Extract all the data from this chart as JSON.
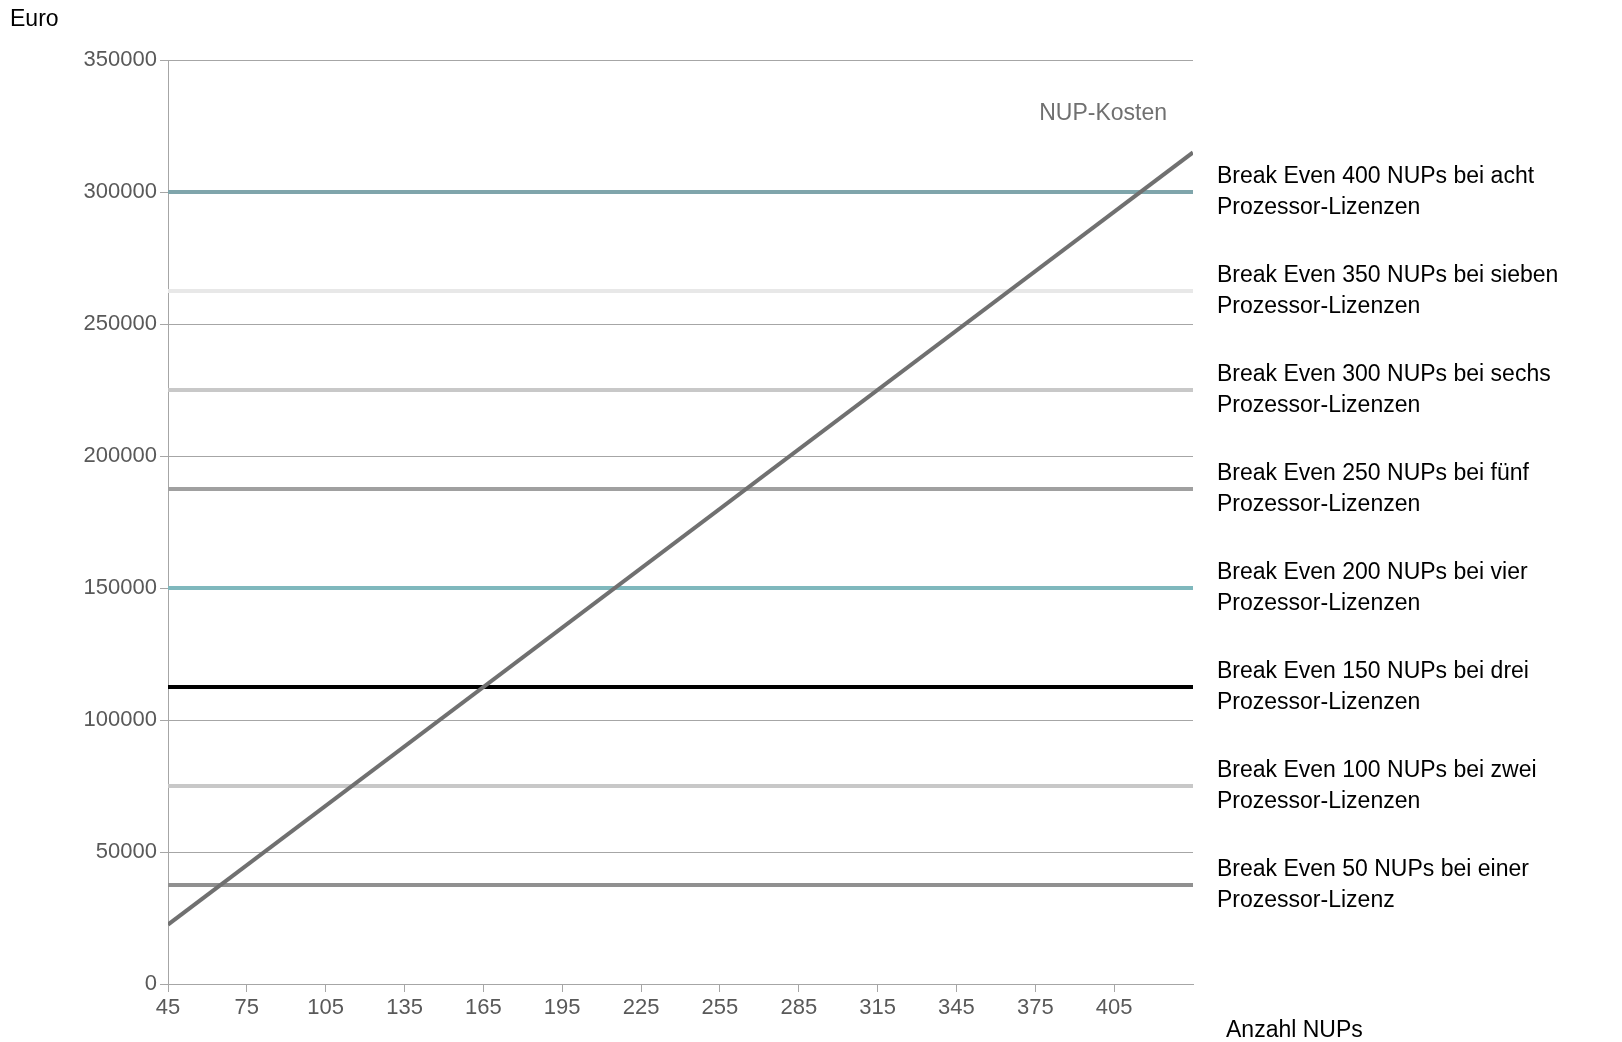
{
  "chart_data": {
    "type": "line",
    "xlabel": "Anzahl NUPs",
    "ylabel": "Euro",
    "x": [
      45,
      435
    ],
    "series": [
      {
        "name": "NUP-Kosten",
        "color": "#707070",
        "values": [
          22500,
          315000
        ]
      }
    ],
    "xlim": [
      45,
      435
    ],
    "xticks": [
      45,
      75,
      105,
      135,
      165,
      195,
      225,
      255,
      285,
      315,
      345,
      375,
      405
    ],
    "ylim": [
      0,
      350000
    ],
    "yticks": [
      0,
      50000,
      100000,
      150000,
      200000,
      250000,
      300000,
      350000
    ],
    "grid": "y",
    "ref_lines": [
      {
        "axis": "y",
        "value": 300000,
        "label": "Break Even 400 NUPs bei acht Prozessor-Lizenzen",
        "color": "#7fa5ab"
      },
      {
        "axis": "y",
        "value": 262500,
        "label": "Break Even 350 NUPs bei sieben Prozessor-Lizenzen",
        "color": "#e8e8e8"
      },
      {
        "axis": "y",
        "value": 225000,
        "label": "Break Even 300 NUPs bei sechs Prozessor-Lizenzen",
        "color": "#c8c8c8"
      },
      {
        "axis": "y",
        "value": 187500,
        "label": "Break Even 250 NUPs bei fünf Prozessor-Lizenzen",
        "color": "#a0a0a0"
      },
      {
        "axis": "y",
        "value": 150000,
        "label": "Break Even 200 NUPs bei vier Prozessor-Lizenzen",
        "color": "#7fb8bd"
      },
      {
        "axis": "y",
        "value": 112500,
        "label": "Break Even 150 NUPs bei drei Prozessor-Lizenzen",
        "color": "#000000"
      },
      {
        "axis": "y",
        "value": 75000,
        "label": "Break Even 100 NUPs bei zwei Prozessor-Lizenzen",
        "color": "#c8c8c8"
      },
      {
        "axis": "y",
        "value": 37500,
        "label": "Break Even 50 NUPs bei einer Prozessor-Lizenz",
        "color": "#909090"
      }
    ]
  }
}
